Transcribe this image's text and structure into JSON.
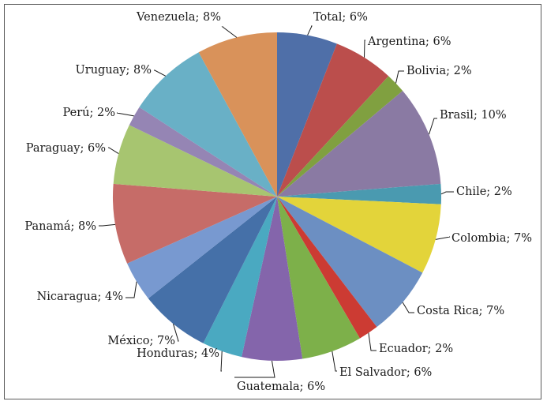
{
  "chart_data": {
    "type": "pie",
    "title": "",
    "start": "top",
    "direction": "clockwise",
    "slices": [
      {
        "label": "Total",
        "value": 6,
        "text": "Total; 6%",
        "color": "#4f6fa8"
      },
      {
        "label": "Argentina",
        "value": 6,
        "text": "Argentina; 6%",
        "color": "#bb4e4c"
      },
      {
        "label": "Bolivia",
        "value": 2,
        "text": "Bolivia; 2%",
        "color": "#80a040"
      },
      {
        "label": "Brasil",
        "value": 10,
        "text": "Brasil; 10%",
        "color": "#8a7aa3"
      },
      {
        "label": "Chile",
        "value": 2,
        "text": "Chile; 2%",
        "color": "#4a9ab0"
      },
      {
        "label": "Colombia",
        "value": 7,
        "text": "Colombia; 7%",
        "color": "#e3d43a"
      },
      {
        "label": "Costa Rica",
        "value": 7,
        "text": "Costa Rica; 7%",
        "color": "#6c8fc2"
      },
      {
        "label": "Ecuador",
        "value": 2,
        "text": "Ecuador; 2%",
        "color": "#cc3b33"
      },
      {
        "label": "El Salvador",
        "value": 6,
        "text": "El Salvador; 6%",
        "color": "#7db04a"
      },
      {
        "label": "Guatemala",
        "value": 6,
        "text": "Guatemala; 6%",
        "color": "#8465ab"
      },
      {
        "label": "Honduras",
        "value": 4,
        "text": "Honduras; 4%",
        "color": "#4aa9c1"
      },
      {
        "label": "México",
        "value": 7,
        "text": "México; 7%",
        "color": "#4570a8"
      },
      {
        "label": "Nicaragua",
        "value": 4,
        "text": "Nicaragua; 4%",
        "color": "#7899d0"
      },
      {
        "label": "Panamá",
        "value": 8,
        "text": "Panamá; 8%",
        "color": "#c66c68"
      },
      {
        "label": "Paraguay",
        "value": 6,
        "text": "Paraguay; 6%",
        "color": "#a7c570"
      },
      {
        "label": "Perú",
        "value": 2,
        "text": "Perú; 2%",
        "color": "#9585b4"
      },
      {
        "label": "Uruguay",
        "value": 8,
        "text": "Uruguay; 8%",
        "color": "#69b0c6"
      },
      {
        "label": "Venezuela",
        "value": 8,
        "text": "Venezuela; 8%",
        "color": "#d9925a"
      }
    ],
    "legend": "none",
    "data_labels": "outside with leader lines"
  }
}
